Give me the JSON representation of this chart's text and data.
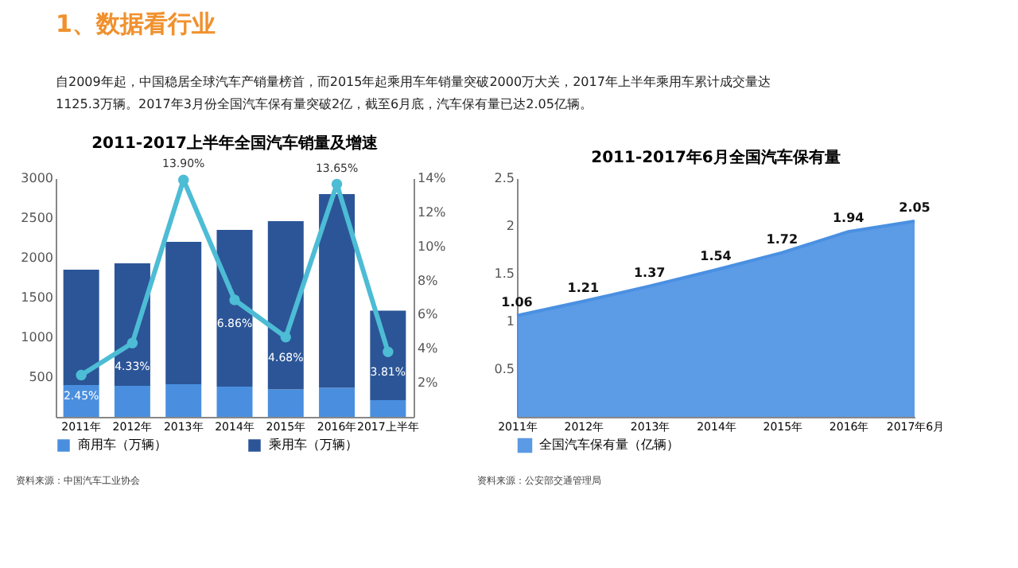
{
  "chart_data": [
    {
      "type": "other",
      "title": "1、数据看行业",
      "annotations": [
        "自2009年起，中国稳居全球汽车产销量榜首，而2015年起乘用车年销量突破2000万大关，2017年上半年乘用车累计成交量达",
        "1125.3万辆。2017年3月份全国汽车保有量突破2亿，截至6月底，汽车保有量已达2.05亿辆。"
      ]
    },
    {
      "type": "bar",
      "stacked": true,
      "title": "2011-2017上半年全国汽车销量及增速",
      "categories": [
        "2011年",
        "2012年",
        "2013年",
        "2014年",
        "2015年",
        "2016年",
        "2017上半年"
      ],
      "series": [
        {
          "name": "商用车（万辆）",
          "color": "#4a8fdf",
          "values": [
            400,
            390,
            410,
            380,
            345,
            365,
            210
          ]
        },
        {
          "name": "乘用车（万辆）",
          "color": "#2b5597",
          "values": [
            1450,
            1540,
            1790,
            1970,
            2115,
            2435,
            1125
          ]
        },
        {
          "type": "line",
          "axis": "y2",
          "marker": "circle",
          "color": "#4dbcd5",
          "values": [
            2.45,
            4.33,
            13.9,
            6.86,
            4.68,
            13.65,
            3.81
          ],
          "value_labels": [
            "2.45%",
            "4.33%",
            "13.90%",
            "6.86%",
            "4.68%",
            "13.65%",
            "3.81%"
          ]
        }
      ],
      "ylim": [
        0,
        3000
      ],
      "yticks": [
        500,
        {
          "value": 1000,
          "label": "1000"
        },
        {
          "value": 1500,
          "label": "1500"
        },
        {
          "value": 2000,
          "label": "2000"
        },
        {
          "value": 2500,
          "label": "2500"
        },
        {
          "value": 3000,
          "label": "3000"
        }
      ],
      "y2lim": [
        0,
        14
      ],
      "y2ticks": [
        {
          "value": 2,
          "label": "2%"
        },
        {
          "value": 4,
          "label": "4%"
        },
        {
          "value": 6,
          "label": "6%"
        },
        {
          "value": 8,
          "label": "8%"
        },
        {
          "value": 10,
          "label": "10%"
        },
        {
          "value": 12,
          "label": "12%"
        },
        {
          "value": 14,
          "label": "14%"
        }
      ],
      "legend": "bottom",
      "annotations": [
        "资料来源：中国汽车工业协会"
      ]
    },
    {
      "type": "area",
      "title": "2011-2017年6月全国汽车保有量",
      "categories": [
        "2011年",
        "2012年",
        "2013年",
        "2014年",
        "2015年",
        "2016年",
        "2017年6月"
      ],
      "series": [
        {
          "name": "全国汽车保有量（亿辆）",
          "color": "#4a90e2",
          "values": [
            1.06,
            1.21,
            1.37,
            1.54,
            1.72,
            1.94,
            2.05
          ]
        }
      ],
      "data_labels": true,
      "ylim": [
        0,
        2.5
      ],
      "yticks": [
        0.5,
        {
          "value": 1,
          "label": "1"
        },
        1.5,
        {
          "value": 2,
          "label": "2"
        },
        2.5
      ],
      "legend": "bottom",
      "annotations": [
        "资料来源：公安部交通管理局"
      ]
    }
  ]
}
